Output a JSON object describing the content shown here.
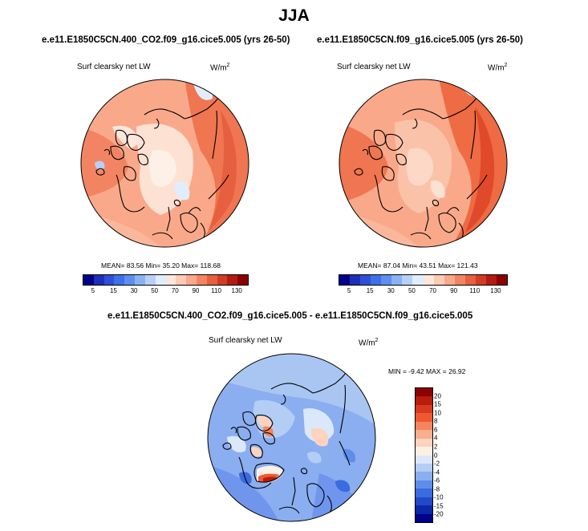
{
  "figure": {
    "title": "JJA",
    "colors": {
      "coast": "#000000",
      "ice_left": "#fde8de",
      "land_right": "#e04a2a"
    }
  },
  "panels": {
    "left": {
      "case": "e.e11.E1850C5CN.400_CO2.f09_g16.cice5.005 (yrs 26-50)",
      "variable": "Surf clearsky net LW",
      "units": "W/m",
      "units_exp": "2",
      "stats": "MEAN=  83.56  Min=  35.20  Max= 118.68",
      "colorbar_labels": [
        "5",
        "15",
        "30",
        "50",
        "70",
        "90",
        "110",
        "130"
      ]
    },
    "right": {
      "case": "e.e11.E1850C5CN.f09_g16.cice5.005 (yrs 26-50)",
      "variable": "Surf clearsky net LW",
      "units": "W/m",
      "units_exp": "2",
      "stats": "MEAN=  87.04  Min=  43.51  Max= 121.43",
      "colorbar_labels": [
        "5",
        "15",
        "30",
        "50",
        "70",
        "90",
        "110",
        "130"
      ]
    },
    "diff": {
      "case": "e.e11.E1850C5CN.400_CO2.f09_g16.cice5.005 - e.e11.E1850C5CN.f09_g16.cice5.005",
      "variable": "Surf clearsky net LW",
      "units": "W/m",
      "units_exp": "2",
      "stats": "MIN =  -9.42 MAX =  26.92",
      "colorbar_labels": [
        "20",
        "15",
        "10",
        "8",
        "6",
        "4",
        "2",
        "0",
        "-2",
        "-4",
        "-6",
        "-8",
        "-10",
        "-15",
        "-20"
      ]
    }
  },
  "colormaps": {
    "absolute": [
      "#00008b",
      "#1f2fb8",
      "#2e50d6",
      "#3e70ea",
      "#5f8ef0",
      "#8cb0f4",
      "#b8d0f8",
      "#e1ecfc",
      "#fde7dc",
      "#fbcbb5",
      "#f9a98a",
      "#f38463",
      "#e65f3e",
      "#d23b24",
      "#b31b12",
      "#8b0000"
    ],
    "difference": [
      "#8b0000",
      "#b81c0c",
      "#d9391e",
      "#ee5a30",
      "#f5855e",
      "#f9ae8e",
      "#fcd3bf",
      "#fdf0e6",
      "#dbe7fb",
      "#b3cdf5",
      "#8aaeef",
      "#5f8dea",
      "#3a6be0",
      "#2249c9",
      "#0c27a8",
      "#00008b"
    ]
  }
}
